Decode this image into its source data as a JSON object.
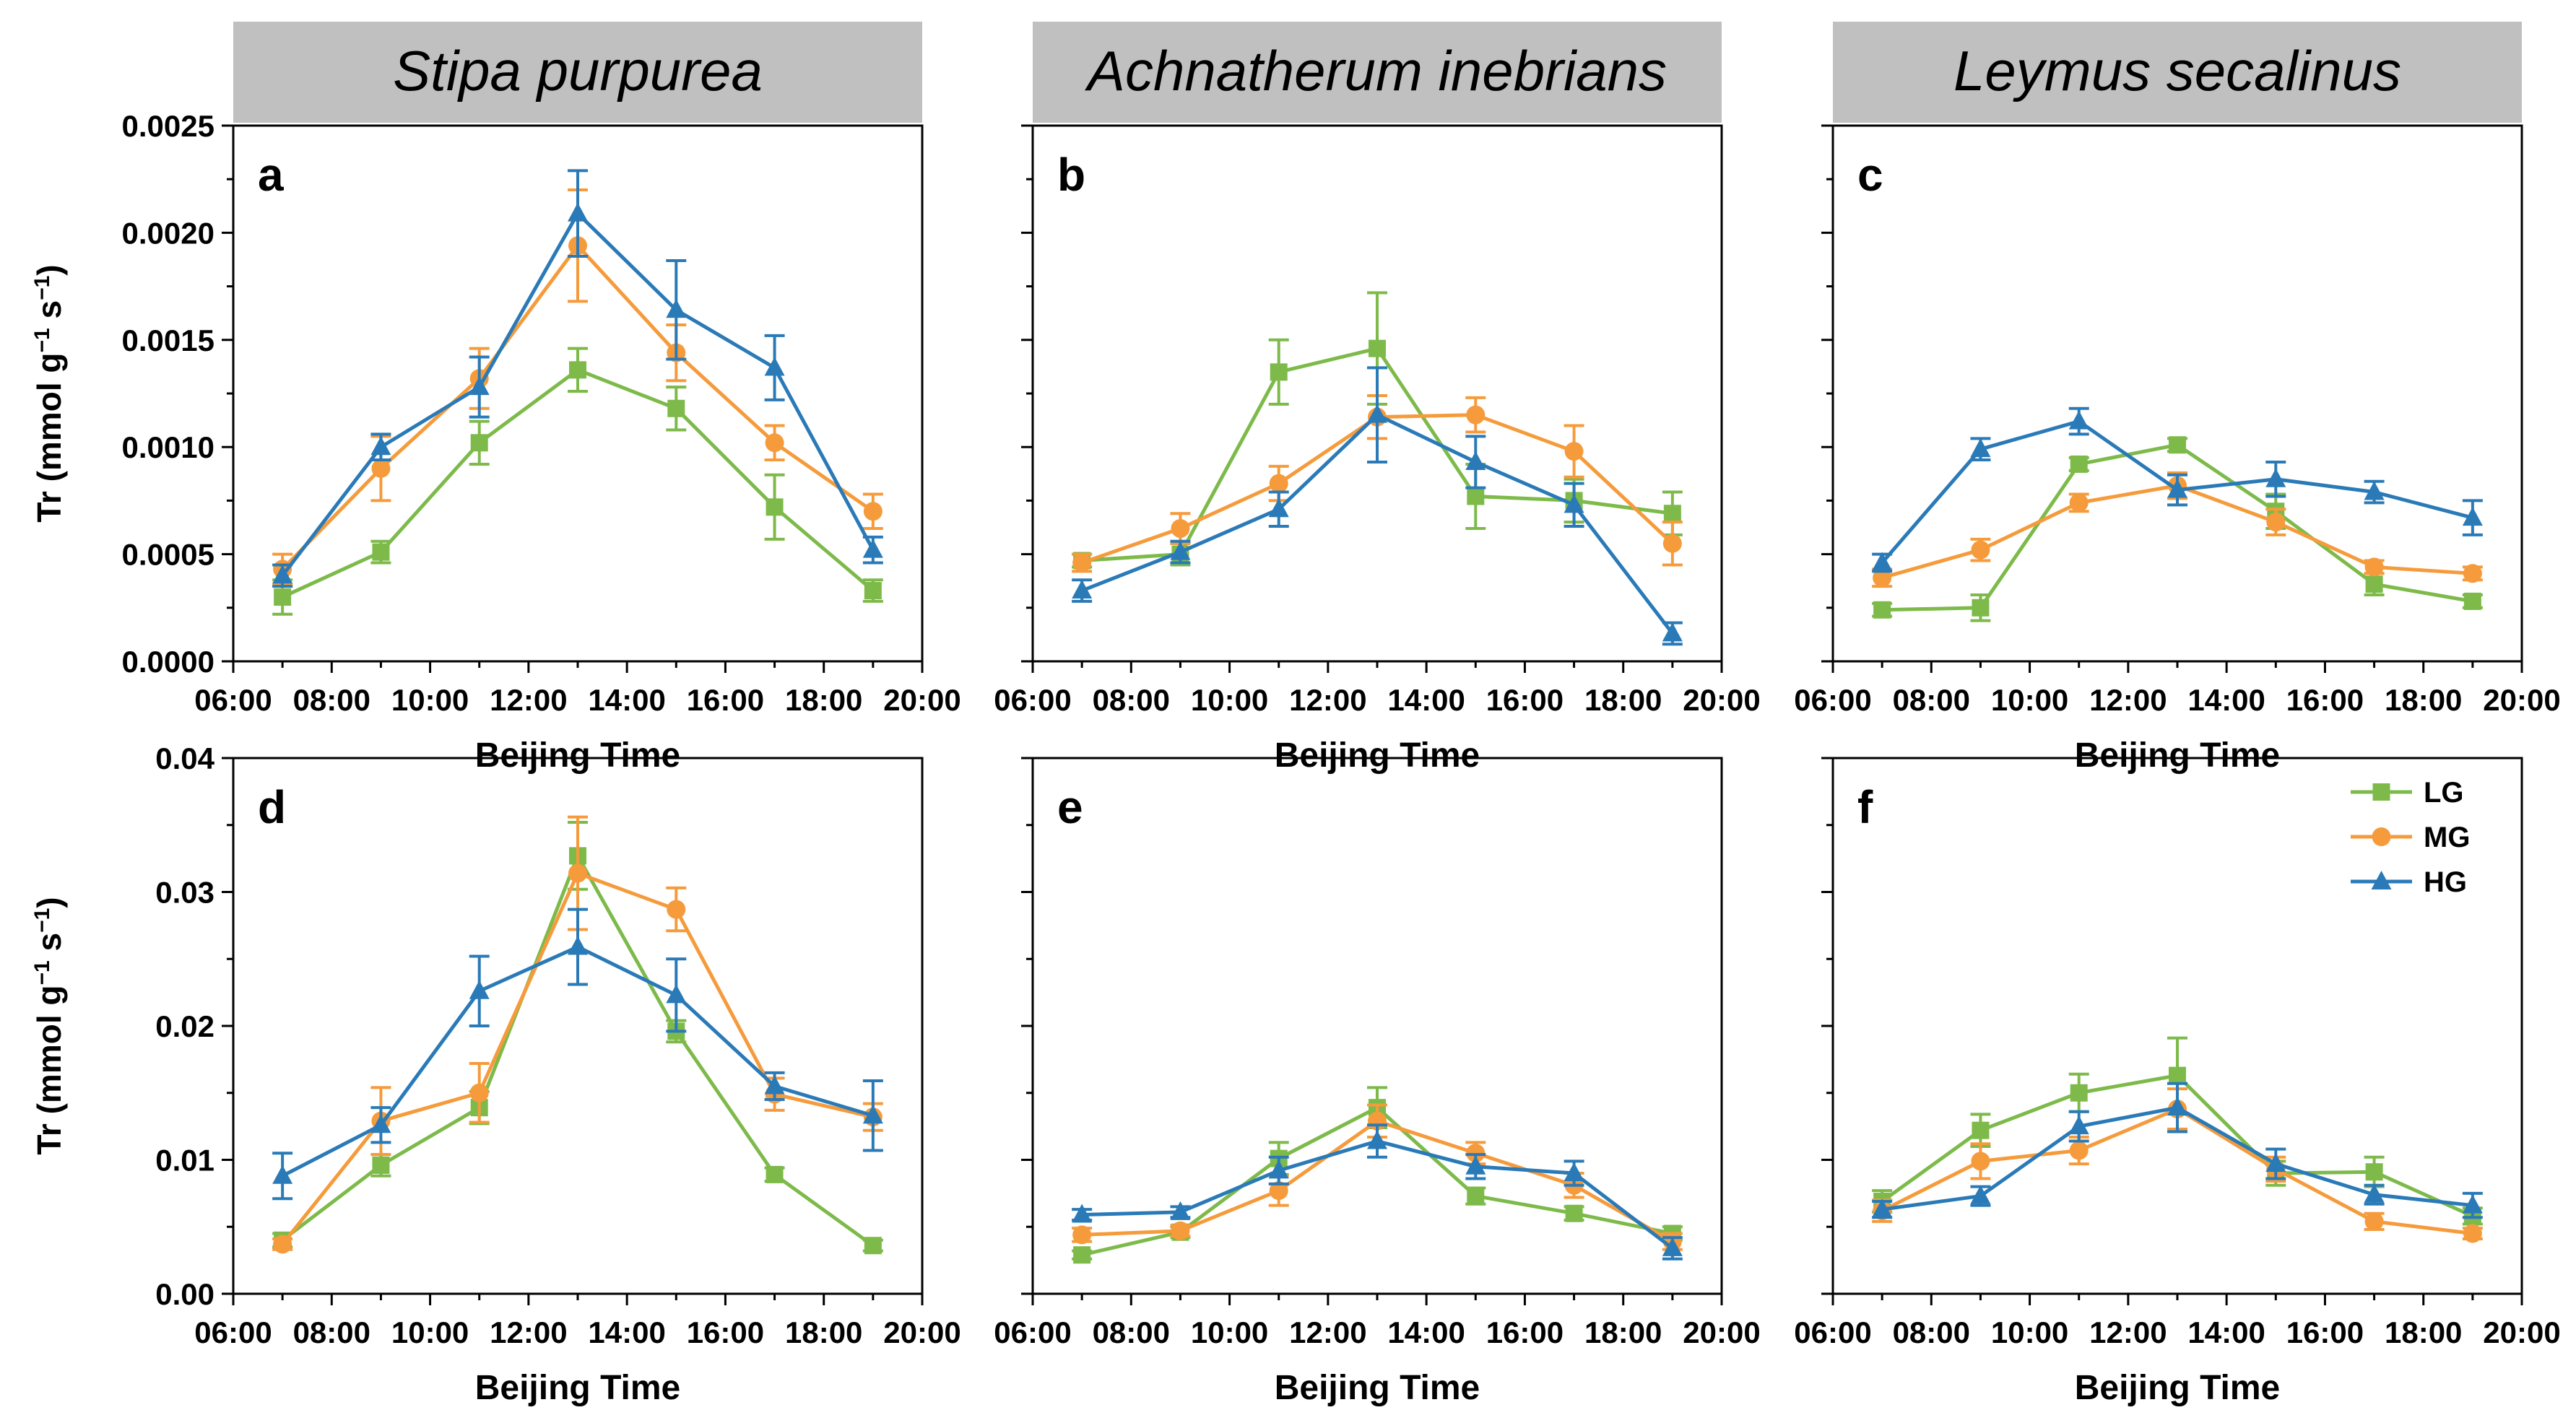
{
  "colors": {
    "LG": "#7dba4a",
    "MG": "#f59b3c",
    "HG": "#2a7ab8",
    "header_bg": "#c0c0c0"
  },
  "headers": [
    "Stipa purpurea",
    "Achnatherum inebrians",
    "Leymus secalinus"
  ],
  "x_axis": {
    "label": "Beijing Time",
    "ticks": [
      "06:00",
      "08:00",
      "10:00",
      "12:00",
      "14:00",
      "16:00",
      "18:00",
      "20:00"
    ],
    "xlim": [
      6,
      20
    ]
  },
  "y_axis_label": {
    "base": "Tr (mmol g",
    "sup1": "−1",
    "mid": " s",
    "sup2": "−1",
    "end": ")"
  },
  "rows": [
    {
      "ylim": [
        0,
        0.0025
      ],
      "ticks": [
        "0.0000",
        "0.0005",
        "0.0010",
        "0.0015",
        "0.0020",
        "0.0025"
      ],
      "tick_values": [
        0,
        0.0005,
        0.001,
        0.0015,
        0.002,
        0.0025
      ]
    },
    {
      "ylim": [
        0,
        0.04
      ],
      "ticks": [
        "0.00",
        "0.01",
        "0.02",
        "0.03",
        "0.04"
      ],
      "tick_values": [
        0,
        0.01,
        0.02,
        0.03,
        0.04
      ]
    }
  ],
  "legend": [
    "LG",
    "MG",
    "HG"
  ],
  "chart_data": [
    {
      "panel": "a",
      "type": "line",
      "title": "Stipa purpurea",
      "xlabel": "Beijing Time",
      "ylabel": "Tr (mmol g−1 s−1)",
      "x": [
        7,
        9,
        11,
        13,
        15,
        17,
        19
      ],
      "ylim": [
        0,
        0.0025
      ],
      "series": [
        {
          "name": "LG",
          "values": [
            0.0003,
            0.00051,
            0.00102,
            0.00136,
            0.00118,
            0.00072,
            0.00033
          ],
          "errors": [
            8e-05,
            5e-05,
            0.0001,
            0.0001,
            0.0001,
            0.00015,
            5e-05
          ]
        },
        {
          "name": "MG",
          "values": [
            0.00043,
            0.0009,
            0.00132,
            0.00194,
            0.00144,
            0.00102,
            0.0007
          ],
          "errors": [
            7e-05,
            0.00015,
            0.00014,
            0.00026,
            0.00013,
            8e-05,
            8e-05
          ]
        },
        {
          "name": "HG",
          "values": [
            0.0004,
            0.001,
            0.00128,
            0.00209,
            0.00164,
            0.00137,
            0.00052
          ],
          "errors": [
            5e-05,
            6e-05,
            0.00014,
            0.0002,
            0.00023,
            0.00015,
            6e-05
          ]
        }
      ]
    },
    {
      "panel": "b",
      "type": "line",
      "title": "Achnatherum inebrians",
      "xlabel": "Beijing Time",
      "ylabel": "Tr (mmol g−1 s−1)",
      "x": [
        7,
        9,
        11,
        13,
        15,
        17,
        19
      ],
      "ylim": [
        0,
        0.0025
      ],
      "series": [
        {
          "name": "LG",
          "values": [
            0.00047,
            0.0005,
            0.00135,
            0.00146,
            0.00077,
            0.00075,
            0.00069
          ],
          "errors": [
            3e-05,
            5e-05,
            0.00015,
            0.00026,
            0.00015,
            0.0001,
            0.0001
          ]
        },
        {
          "name": "MG",
          "values": [
            0.00046,
            0.00062,
            0.00083,
            0.00114,
            0.00115,
            0.00098,
            0.00055
          ],
          "errors": [
            4e-05,
            7e-05,
            8e-05,
            0.0001,
            8e-05,
            0.00012,
            0.0001
          ]
        },
        {
          "name": "HG",
          "values": [
            0.00033,
            0.00051,
            0.00071,
            0.00115,
            0.00093,
            0.00073,
            0.00013
          ],
          "errors": [
            5e-05,
            5e-05,
            8e-05,
            0.00022,
            0.00012,
            0.0001,
            5e-05
          ]
        }
      ]
    },
    {
      "panel": "c",
      "type": "line",
      "title": "Leymus secalinus",
      "xlabel": "Beijing Time",
      "ylabel": "Tr (mmol g−1 s−1)",
      "x": [
        7,
        9,
        11,
        13,
        15,
        17,
        19
      ],
      "ylim": [
        0,
        0.0025
      ],
      "series": [
        {
          "name": "LG",
          "values": [
            0.00024,
            0.00025,
            0.00092,
            0.00101,
            0.0007,
            0.00036,
            0.00028
          ],
          "errors": [
            3e-05,
            6e-05,
            3e-05,
            3e-05,
            8e-05,
            5e-05,
            3e-05
          ]
        },
        {
          "name": "MG",
          "values": [
            0.00039,
            0.00052,
            0.00074,
            0.00082,
            0.00065,
            0.00044,
            0.00041
          ],
          "errors": [
            4e-05,
            5e-05,
            4e-05,
            6e-05,
            6e-05,
            3e-05,
            3e-05
          ]
        },
        {
          "name": "HG",
          "values": [
            0.00046,
            0.00099,
            0.00112,
            0.0008,
            0.00085,
            0.00079,
            0.00067
          ],
          "errors": [
            4e-05,
            5e-05,
            6e-05,
            7e-05,
            8e-05,
            5e-05,
            8e-05
          ]
        }
      ]
    },
    {
      "panel": "d",
      "type": "line",
      "title": "Stipa purpurea",
      "xlabel": "Beijing Time",
      "ylabel": "Tr (mmol g−1 s−1)",
      "x": [
        7,
        9,
        11,
        13,
        15,
        17,
        19
      ],
      "ylim": [
        0,
        0.04
      ],
      "series": [
        {
          "name": "LG",
          "values": [
            0.004,
            0.0096,
            0.0139,
            0.0327,
            0.0196,
            0.0089,
            0.0036
          ],
          "errors": [
            0.0005,
            0.0008,
            0.0012,
            0.0025,
            0.0008,
            0.0005,
            0.0004
          ]
        },
        {
          "name": "MG",
          "values": [
            0.0037,
            0.0129,
            0.015,
            0.0314,
            0.0287,
            0.0149,
            0.0132
          ],
          "errors": [
            0.0004,
            0.0025,
            0.0022,
            0.0042,
            0.0016,
            0.0012,
            0.001
          ]
        },
        {
          "name": "HG",
          "values": [
            0.0088,
            0.0126,
            0.0226,
            0.0259,
            0.0223,
            0.0155,
            0.0133
          ],
          "errors": [
            0.0017,
            0.0013,
            0.0026,
            0.0028,
            0.0027,
            0.001,
            0.0026
          ]
        }
      ]
    },
    {
      "panel": "e",
      "type": "line",
      "title": "Achnatherum inebrians",
      "xlabel": "Beijing Time",
      "ylabel": "Tr (mmol g−1 s−1)",
      "x": [
        7,
        9,
        11,
        13,
        15,
        17,
        19
      ],
      "ylim": [
        0,
        0.04
      ],
      "series": [
        {
          "name": "LG",
          "values": [
            0.0029,
            0.0046,
            0.0101,
            0.0139,
            0.0073,
            0.006,
            0.0045
          ],
          "errors": [
            0.0003,
            0.0004,
            0.0012,
            0.0015,
            0.0006,
            0.0005,
            0.0005
          ]
        },
        {
          "name": "MG",
          "values": [
            0.0044,
            0.0047,
            0.0077,
            0.0129,
            0.0105,
            0.0081,
            0.0039
          ],
          "errors": [
            0.0005,
            0.0004,
            0.0011,
            0.0012,
            0.0008,
            0.0009,
            0.0006
          ]
        },
        {
          "name": "HG",
          "values": [
            0.0059,
            0.0061,
            0.0092,
            0.0114,
            0.0095,
            0.009,
            0.0034
          ],
          "errors": [
            0.0004,
            0.0004,
            0.001,
            0.0012,
            0.0009,
            0.0009,
            0.0008
          ]
        }
      ]
    },
    {
      "panel": "f",
      "type": "line",
      "title": "Leymus secalinus",
      "xlabel": "Beijing Time",
      "ylabel": "Tr (mmol g−1 s−1)",
      "x": [
        7,
        9,
        11,
        13,
        15,
        17,
        19
      ],
      "ylim": [
        0,
        0.04
      ],
      "series": [
        {
          "name": "LG",
          "values": [
            0.0069,
            0.0122,
            0.015,
            0.0163,
            0.009,
            0.0091,
            0.0058
          ],
          "errors": [
            0.0008,
            0.0012,
            0.0014,
            0.0028,
            0.0009,
            0.0011,
            0.0006
          ]
        },
        {
          "name": "MG",
          "values": [
            0.0062,
            0.0099,
            0.0107,
            0.0138,
            0.0093,
            0.0054,
            0.0045
          ],
          "errors": [
            0.0008,
            0.0013,
            0.001,
            0.0015,
            0.0009,
            0.0006,
            0.0004
          ]
        },
        {
          "name": "HG",
          "values": [
            0.0063,
            0.0073,
            0.0125,
            0.0139,
            0.0097,
            0.0074,
            0.0066
          ],
          "errors": [
            0.0006,
            0.0007,
            0.0011,
            0.0018,
            0.0011,
            0.0007,
            0.0009
          ]
        }
      ]
    }
  ]
}
